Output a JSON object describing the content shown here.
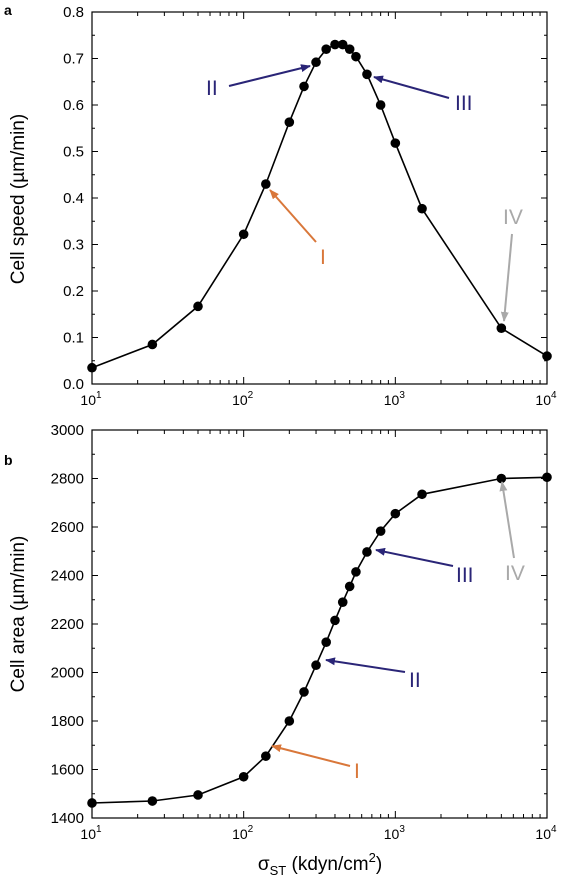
{
  "figure": {
    "xlabel_sigma": "σ",
    "xlabel_sub": "ST",
    "xlabel_unit": " (kdyn/cm",
    "xlabel_sup": "2",
    "xlabel_close": ")"
  },
  "chart_data": [
    {
      "type": "line",
      "panel_label": "a",
      "ylabel": "Cell speed (µm/min)",
      "xscale": "log",
      "xlim": [
        10,
        10000
      ],
      "ylim": [
        0.0,
        0.8
      ],
      "yticks": [
        "0.0",
        "0.1",
        "0.2",
        "0.3",
        "0.4",
        "0.5",
        "0.6",
        "0.7",
        "0.8"
      ],
      "xticks": [
        {
          "base": "10",
          "exp": "1"
        },
        {
          "base": "10",
          "exp": "2"
        },
        {
          "base": "10",
          "exp": "3"
        },
        {
          "base": "10",
          "exp": "4"
        }
      ],
      "series": [
        {
          "x": [
            10,
            25,
            50,
            100,
            140,
            200,
            250,
            300,
            350,
            400,
            450,
            500,
            550,
            650,
            800,
            1000,
            1500,
            5000,
            10000
          ],
          "y": [
            0.035,
            0.085,
            0.167,
            0.322,
            0.43,
            0.563,
            0.64,
            0.692,
            0.72,
            0.73,
            0.73,
            0.72,
            0.704,
            0.666,
            0.6,
            0.518,
            0.377,
            0.12,
            0.06
          ]
        }
      ],
      "annotations": [
        {
          "label": "I",
          "color": "#d9773a"
        },
        {
          "label": "II",
          "color": "#2a2577"
        },
        {
          "label": "III",
          "color": "#2a2577"
        },
        {
          "label": "IV",
          "color": "#a9a9a9"
        }
      ]
    },
    {
      "type": "line",
      "panel_label": "b",
      "ylabel": "Cell area (µm/min)",
      "xscale": "log",
      "xlim": [
        10,
        10000
      ],
      "ylim": [
        1400,
        3000
      ],
      "yticks": [
        "1400",
        "1600",
        "1800",
        "2000",
        "2200",
        "2400",
        "2600",
        "2800",
        "3000"
      ],
      "xticks": [
        {
          "base": "10",
          "exp": "1"
        },
        {
          "base": "10",
          "exp": "2"
        },
        {
          "base": "10",
          "exp": "3"
        },
        {
          "base": "10",
          "exp": "4"
        }
      ],
      "series": [
        {
          "x": [
            10,
            25,
            50,
            100,
            140,
            200,
            250,
            300,
            350,
            400,
            450,
            500,
            550,
            650,
            800,
            1000,
            1500,
            5000,
            10000
          ],
          "y": [
            1462,
            1470,
            1495,
            1570,
            1655,
            1800,
            1920,
            2030,
            2125,
            2215,
            2290,
            2355,
            2415,
            2497,
            2583,
            2655,
            2735,
            2800,
            2805
          ]
        }
      ],
      "annotations": [
        {
          "label": "I",
          "color": "#d9773a"
        },
        {
          "label": "II",
          "color": "#2a2577"
        },
        {
          "label": "III",
          "color": "#2a2577"
        },
        {
          "label": "IV",
          "color": "#a9a9a9"
        }
      ]
    }
  ]
}
